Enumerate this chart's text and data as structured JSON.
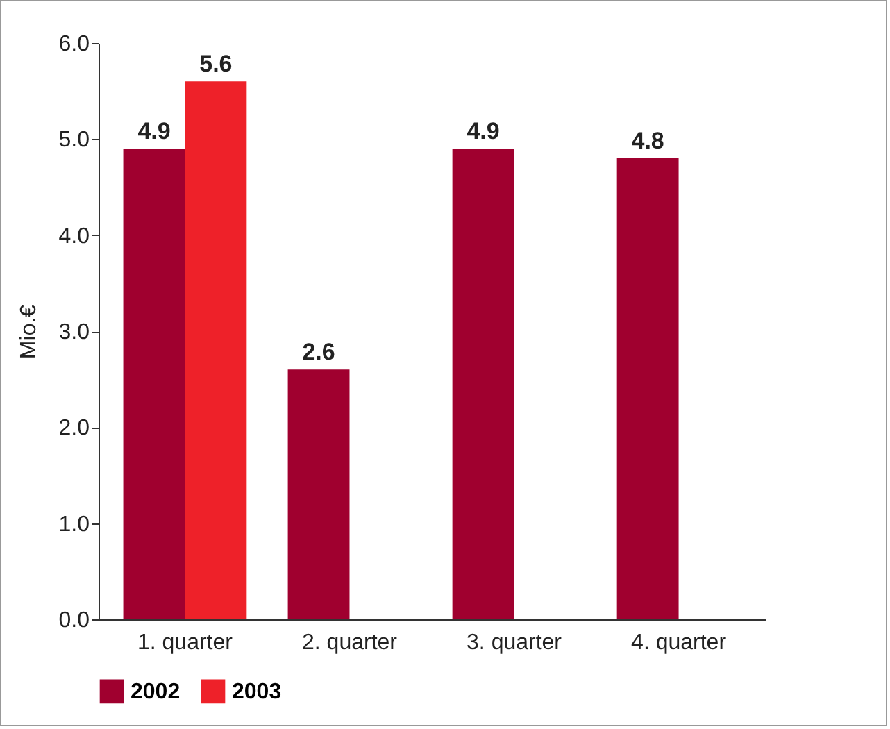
{
  "chart_data": {
    "type": "bar",
    "categories": [
      "1. quarter",
      "2. quarter",
      "3. quarter",
      "4. quarter"
    ],
    "series": [
      {
        "name": "2002",
        "color": "#a0002f",
        "values": [
          4.9,
          2.6,
          4.9,
          4.8
        ]
      },
      {
        "name": "2003",
        "color": "#ee2129",
        "values": [
          5.6,
          null,
          null,
          null
        ]
      }
    ],
    "ylabel": "Mio.€",
    "ylim": [
      0,
      6
    ],
    "yticks": [
      {
        "value": 0,
        "label": "0.0"
      },
      {
        "value": 1,
        "label": "1.0"
      },
      {
        "value": 2,
        "label": "2.0"
      },
      {
        "value": 3,
        "label": "3.0"
      },
      {
        "value": 4,
        "label": "4.0"
      },
      {
        "value": 5,
        "label": "5.0"
      },
      {
        "value": 6,
        "label": "6.0"
      }
    ],
    "data_labels": true,
    "legend": "bottom left",
    "grid": false
  }
}
